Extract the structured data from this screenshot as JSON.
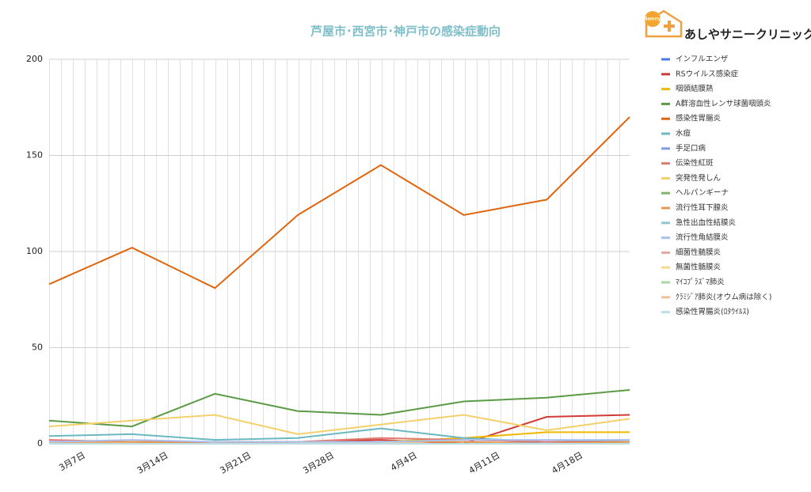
{
  "logo": {
    "badge": "Sunny",
    "text": "あしやサニークリニック"
  },
  "chart_data": {
    "type": "line",
    "title": "芦屋市･西宮市･神戸市の感染症動向",
    "categories": [
      "3月7日",
      "3月14日",
      "3月21日",
      "3月28日",
      "4月4日",
      "4月11日",
      "4月18日",
      null
    ],
    "ylim": [
      0,
      200
    ],
    "yticks": [
      0,
      50,
      100,
      150,
      200
    ],
    "grid": true,
    "legend": "right",
    "series": [
      {
        "name": "インフルエンザ",
        "color": "#4a7de8",
        "values": [
          0,
          0,
          0,
          0,
          0,
          0,
          0,
          0
        ]
      },
      {
        "name": "RSウイルス感染症",
        "color": "#d13b36",
        "values": [
          1,
          1,
          1,
          1,
          2,
          0,
          14,
          15
        ]
      },
      {
        "name": "咽頭結膜熱",
        "color": "#f1b800",
        "values": [
          1,
          1,
          1,
          1,
          1,
          3,
          6,
          6
        ]
      },
      {
        "name": "A群溶血性レンサ球菌咽頭炎",
        "color": "#5b9b45",
        "values": [
          12,
          9,
          26,
          17,
          15,
          22,
          24,
          28
        ]
      },
      {
        "name": "感染性胃腸炎",
        "color": "#e0640c",
        "values": [
          83,
          102,
          81,
          119,
          145,
          119,
          127,
          170
        ]
      },
      {
        "name": "水痘",
        "color": "#6bb8c1",
        "values": [
          4,
          5,
          2,
          3,
          8,
          3,
          1,
          2
        ]
      },
      {
        "name": "手足口病",
        "color": "#7c9ee8",
        "values": [
          0,
          0,
          0,
          0,
          0,
          0,
          1,
          1
        ]
      },
      {
        "name": "伝染性紅斑",
        "color": "#e07a70",
        "values": [
          2,
          1,
          1,
          1,
          3,
          2,
          1,
          1
        ]
      },
      {
        "name": "突発性発しん",
        "color": "#f3d06a",
        "values": [
          9,
          12,
          15,
          5,
          10,
          15,
          7,
          13
        ]
      },
      {
        "name": "ヘルパンギーナ",
        "color": "#79b86a",
        "values": [
          0,
          0,
          0,
          0,
          0,
          0,
          0,
          0
        ]
      },
      {
        "name": "流行性耳下腺炎",
        "color": "#e99a4e",
        "values": [
          1,
          1,
          0,
          1,
          1,
          1,
          0,
          1
        ]
      },
      {
        "name": "急性出血性結膜炎",
        "color": "#8fc7d0",
        "values": [
          0,
          0,
          0,
          0,
          0,
          0,
          0,
          0
        ]
      },
      {
        "name": "流行性角結膜炎",
        "color": "#a9c0f2",
        "values": [
          1,
          2,
          1,
          1,
          1,
          2,
          2,
          2
        ]
      },
      {
        "name": "細菌性髄膜炎",
        "color": "#e8a5a0",
        "values": [
          0,
          0,
          0,
          0,
          0,
          0,
          0,
          0
        ]
      },
      {
        "name": "無菌性髄膜炎",
        "color": "#f5dc8d",
        "values": [
          0,
          0,
          0,
          0,
          0,
          0,
          0,
          0
        ]
      },
      {
        "name": "ﾏｲｺﾌﾟﾗｽﾞﾏ肺炎",
        "color": "#a9d8a0",
        "values": [
          0,
          0,
          0,
          0,
          0,
          0,
          0,
          0
        ]
      },
      {
        "name": "ｸﾗﾐｼﾞｱ肺炎(オウム病は除く)",
        "color": "#f2c095",
        "values": [
          0,
          0,
          0,
          0,
          0,
          0,
          0,
          0
        ]
      },
      {
        "name": "感染性胃腸炎(ﾛﾀｳｲﾙｽ)",
        "color": "#b8e0e5",
        "values": [
          0,
          0,
          0,
          0,
          0,
          0,
          0,
          0
        ]
      }
    ]
  }
}
